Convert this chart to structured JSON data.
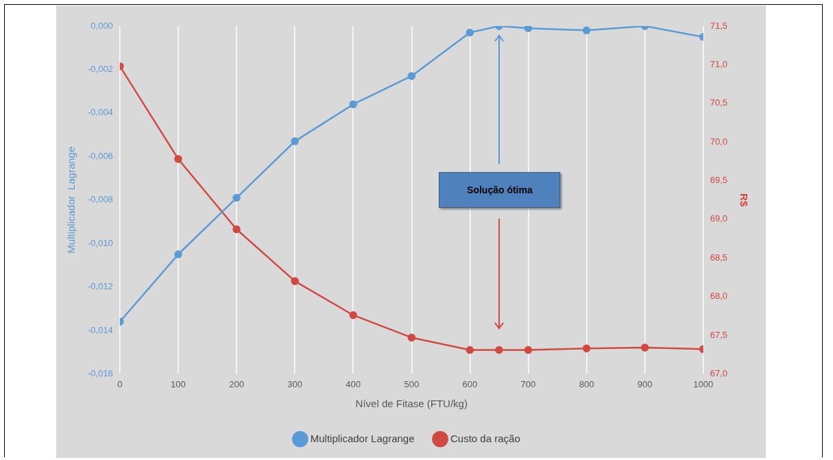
{
  "chart_data": {
    "type": "line",
    "xlabel": "Nível de Fitase (FTU/kg)",
    "ylabel": "Multiplicador  Lagrange",
    "y2label": "R$",
    "x": [
      0,
      100,
      200,
      300,
      400,
      500,
      600,
      650,
      700,
      800,
      900,
      1000
    ],
    "series": [
      {
        "name": "Multiplicador Lagrange",
        "color": "#5b9bd5",
        "values": [
          -0.0136,
          -0.0105,
          -0.0079,
          -0.0053,
          -0.0036,
          -0.0023,
          -0.0003,
          0,
          -0.0001,
          -0.0002,
          0,
          -0.0005
        ]
      },
      {
        "name": "Custo da ração",
        "color": "#d04a43",
        "axis": "y2",
        "values": [
          70.98,
          69.78,
          68.87,
          68.2,
          67.76,
          67.47,
          67.31,
          67.31,
          67.31,
          67.33,
          67.34,
          67.32
        ]
      }
    ],
    "xlim": [
      0,
      1000
    ],
    "xticks": [
      0,
      100,
      200,
      300,
      400,
      500,
      600,
      700,
      800,
      900,
      1000
    ],
    "ylim": [
      -0.016,
      0
    ],
    "yticks": [
      {
        "value": -0.016,
        "label": "-0,016"
      },
      {
        "value": -0.014,
        "label": "-0,014"
      },
      {
        "value": -0.012,
        "label": "-0,012"
      },
      {
        "value": -0.01,
        "label": "-0,010"
      },
      {
        "value": -0.008,
        "label": "-0,008"
      },
      {
        "value": -0.006,
        "label": "-0,006"
      },
      {
        "value": -0.004,
        "label": "-0,004"
      },
      {
        "value": -0.002,
        "label": "-0,002"
      },
      {
        "value": 0,
        "label": "0,000"
      }
    ],
    "y2lim": [
      67,
      71.5
    ],
    "y2ticks": [
      {
        "value": 67,
        "label": "67,0"
      },
      {
        "value": 67.5,
        "label": "67,5"
      },
      {
        "value": 68,
        "label": "68,0"
      },
      {
        "value": 68.5,
        "label": "68,5"
      },
      {
        "value": 69,
        "label": "69,0"
      },
      {
        "value": 69.5,
        "label": "69,5"
      },
      {
        "value": 70,
        "label": "70,0"
      },
      {
        "value": 70.5,
        "label": "70,5"
      },
      {
        "value": 71,
        "label": "71,0"
      },
      {
        "value": 71.5,
        "label": "71,5"
      }
    ],
    "annotations": [
      "Solução ótima"
    ],
    "grid": "x",
    "legend": "bottom",
    "marker": "circle",
    "line_style": "solid"
  }
}
